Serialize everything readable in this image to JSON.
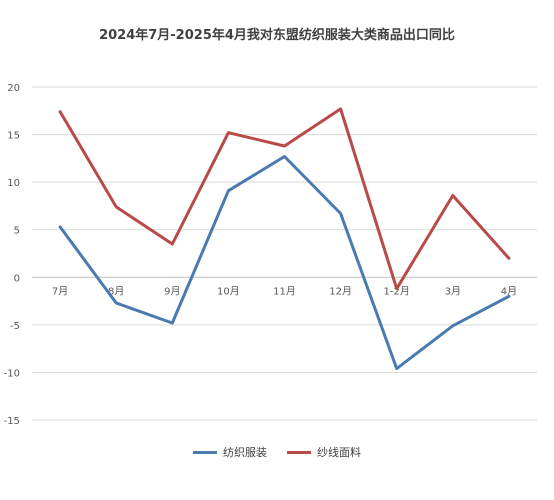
{
  "chart_data": {
    "type": "line",
    "title": "2024年7月-2025年4月我对东盟纺织服装大类商品出口同比",
    "categories": [
      "7月",
      "8月",
      "9月",
      "10月",
      "11月",
      "12月",
      "1-2月",
      "3月",
      "4月"
    ],
    "ylim": [
      -15,
      20
    ],
    "yticks": [
      -15,
      -10,
      -5,
      0,
      5,
      10,
      15,
      20
    ],
    "grid": true,
    "legend_position": "bottom",
    "series": [
      {
        "name": "纺织服装",
        "color": "#4a7ab0",
        "values": [
          5.3,
          -2.7,
          -4.8,
          9.1,
          12.7,
          6.7,
          -9.6,
          -5.1,
          -2.0
        ]
      },
      {
        "name": "纱线面料",
        "color": "#b84a4a",
        "values": [
          17.4,
          7.4,
          3.5,
          15.2,
          13.8,
          17.7,
          -1.2,
          8.6,
          2.0
        ]
      }
    ]
  }
}
